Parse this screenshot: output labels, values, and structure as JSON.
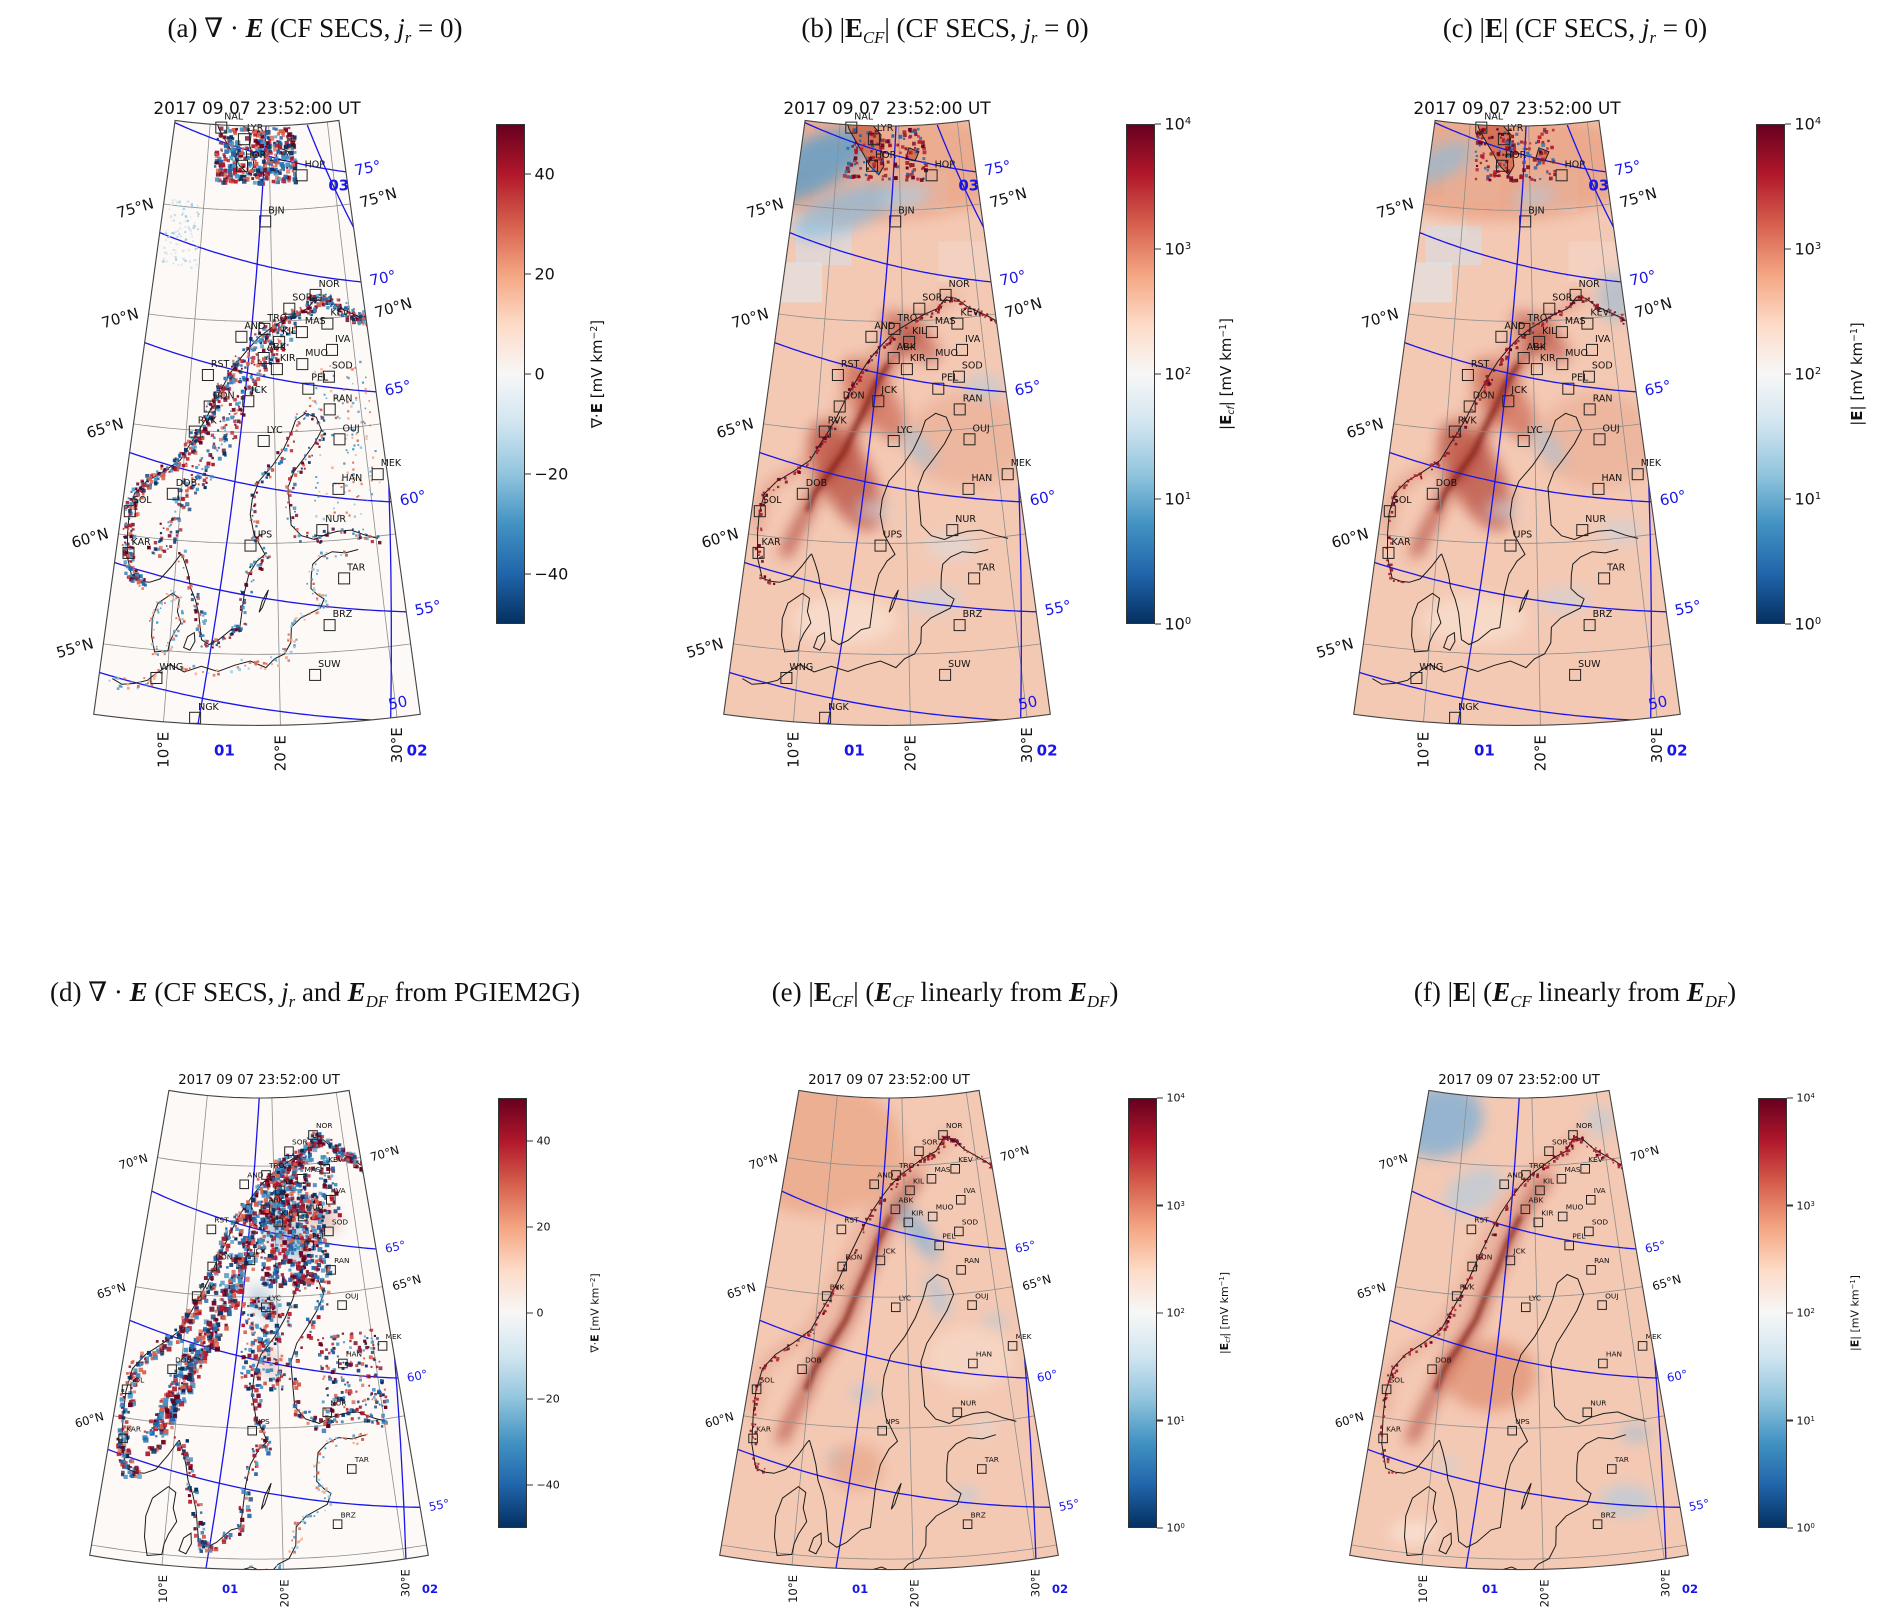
{
  "figure": {
    "timestamp": "2017 09 07 23:52:00 UT",
    "colors": {
      "magnetic_blue": "#1a15e8",
      "graticule": "#8d8d8d",
      "coast": "#1a1a1a",
      "station": "#222222",
      "divergence_background": "#fcf9f6",
      "magnitude_background": "#f4c9b4"
    },
    "cmap_rdbu_r": [
      "#053061",
      "#2166ac",
      "#4393c3",
      "#92c5de",
      "#d1e5f0",
      "#f7f7f7",
      "#fddbc7",
      "#f4a582",
      "#d6604d",
      "#b2182b",
      "#67001f"
    ]
  },
  "panels": [
    {
      "id": "a",
      "row": "top",
      "style": "divergence",
      "colorbar": "div",
      "title_segments": [
        {
          "t": "(a) ∇ · "
        },
        {
          "t": "E",
          "b": 1,
          "i": 1
        },
        {
          "t": " (CF SECS, "
        },
        {
          "t": "j",
          "i": 1
        },
        {
          "t": "r",
          "i": 1,
          "sub": 1
        },
        {
          "t": " = 0)"
        }
      ]
    },
    {
      "id": "b",
      "row": "top",
      "style": "magnitude-b",
      "colorbar": "logEcf",
      "title_segments": [
        {
          "t": "(b) |"
        },
        {
          "t": "E",
          "b": 1
        },
        {
          "t": "CF",
          "i": 1,
          "sub": 1
        },
        {
          "t": "| (CF SECS, "
        },
        {
          "t": "j",
          "i": 1
        },
        {
          "t": "r",
          "i": 1,
          "sub": 1
        },
        {
          "t": " = 0)"
        }
      ]
    },
    {
      "id": "c",
      "row": "top",
      "style": "magnitude-c",
      "colorbar": "logE",
      "title_segments": [
        {
          "t": "(c) |"
        },
        {
          "t": "E",
          "b": 1
        },
        {
          "t": "| (CF SECS, "
        },
        {
          "t": "j",
          "i": 1
        },
        {
          "t": "r",
          "i": 1,
          "sub": 1
        },
        {
          "t": " = 0)"
        }
      ]
    },
    {
      "id": "d",
      "row": "bottom",
      "style": "divergence-d",
      "colorbar": "div",
      "title_segments": [
        {
          "t": "(d) ∇ · "
        },
        {
          "t": "E",
          "b": 1,
          "i": 1
        },
        {
          "t": " (CF SECS, "
        },
        {
          "t": "j",
          "i": 1
        },
        {
          "t": "r",
          "i": 1,
          "sub": 1
        },
        {
          "t": " and "
        },
        {
          "t": "E",
          "b": 1,
          "i": 1
        },
        {
          "t": "DF",
          "i": 1,
          "sub": 1
        },
        {
          "t": " from PGIEM2G)"
        }
      ]
    },
    {
      "id": "e",
      "row": "bottom",
      "style": "magnitude-e",
      "colorbar": "logEcf",
      "title_segments": [
        {
          "t": "(e) |"
        },
        {
          "t": "E",
          "b": 1
        },
        {
          "t": "CF",
          "i": 1,
          "sub": 1
        },
        {
          "t": "| ("
        },
        {
          "t": "E",
          "b": 1,
          "i": 1
        },
        {
          "t": "CF",
          "i": 1,
          "sub": 1
        },
        {
          "t": " linearly from "
        },
        {
          "t": "E",
          "b": 1,
          "i": 1
        },
        {
          "t": "DF",
          "i": 1,
          "sub": 1
        },
        {
          "t": ")"
        }
      ]
    },
    {
      "id": "f",
      "row": "bottom",
      "style": "magnitude-f",
      "colorbar": "logE",
      "title_segments": [
        {
          "t": "(f) |"
        },
        {
          "t": "E",
          "b": 1
        },
        {
          "t": "| ("
        },
        {
          "t": "E",
          "b": 1,
          "i": 1
        },
        {
          "t": "CF",
          "i": 1,
          "sub": 1
        },
        {
          "t": " linearly from "
        },
        {
          "t": "E",
          "b": 1,
          "i": 1
        },
        {
          "t": "DF",
          "i": 1,
          "sub": 1
        },
        {
          "t": ")"
        }
      ]
    }
  ],
  "colorbars": {
    "div": {
      "type": "diverging",
      "units": "mV km−2",
      "range": [
        -50,
        50
      ],
      "ticks": [
        {
          "t": "40",
          "pos": 0.1
        },
        {
          "t": "20",
          "pos": 0.3
        },
        {
          "t": "0",
          "pos": 0.5
        },
        {
          "t": "−20",
          "pos": 0.7
        },
        {
          "t": "−40",
          "pos": 0.9
        }
      ],
      "label_segments": [
        {
          "t": "∇·"
        },
        {
          "t": "E",
          "b": 1
        },
        {
          "t": " [mV km"
        },
        {
          "t": "−2",
          "sup": 1
        },
        {
          "t": "]"
        }
      ]
    },
    "logEcf": {
      "type": "log",
      "units": "mV km−1",
      "range": [
        1,
        10000
      ],
      "ticks": [
        {
          "t": "10",
          "exp": "4",
          "pos": 0
        },
        {
          "t": "10",
          "exp": "3",
          "pos": 0.25
        },
        {
          "t": "10",
          "exp": "2",
          "pos": 0.5
        },
        {
          "t": "10",
          "exp": "1",
          "pos": 0.75
        },
        {
          "t": "10",
          "exp": "0",
          "pos": 1
        }
      ],
      "label_segments": [
        {
          "t": "|"
        },
        {
          "t": "E",
          "b": 1
        },
        {
          "t": "cf",
          "i": 1,
          "sub": 1
        },
        {
          "t": "| [mV km"
        },
        {
          "t": "−1",
          "sup": 1
        },
        {
          "t": "]"
        }
      ]
    },
    "logE": {
      "type": "log",
      "units": "mV km−1",
      "range": [
        1,
        10000
      ],
      "ticks": [
        {
          "t": "10",
          "exp": "4",
          "pos": 0
        },
        {
          "t": "10",
          "exp": "3",
          "pos": 0.25
        },
        {
          "t": "10",
          "exp": "2",
          "pos": 0.5
        },
        {
          "t": "10",
          "exp": "1",
          "pos": 0.75
        },
        {
          "t": "10",
          "exp": "0",
          "pos": 1
        }
      ],
      "label_segments": [
        {
          "t": "|"
        },
        {
          "t": "E",
          "b": 1
        },
        {
          "t": "| [mV km"
        },
        {
          "t": "−1",
          "sup": 1
        },
        {
          "t": "]"
        }
      ]
    }
  },
  "axes_top": {
    "lat_left": [
      {
        "label": "75°N",
        "lat": 75
      },
      {
        "label": "70°N",
        "lat": 70
      },
      {
        "label": "65°N",
        "lat": 65
      },
      {
        "label": "60°N",
        "lat": 60
      },
      {
        "label": "55°N",
        "lat": 55
      }
    ],
    "lat_right": [
      {
        "label": "75°N",
        "lat": 75
      },
      {
        "label": "70°N",
        "lat": 70
      }
    ],
    "mlat": [
      {
        "label": "75°",
        "mlat": 75
      },
      {
        "label": "70°",
        "mlat": 70
      },
      {
        "label": "65°",
        "mlat": 65
      },
      {
        "label": "60°",
        "mlat": 60
      },
      {
        "label": "55°",
        "mlat": 55
      },
      {
        "label": "50",
        "mlat": 50
      }
    ],
    "mlt": [
      {
        "label": "03",
        "line": "l03"
      },
      {
        "label": "01",
        "line": "l01"
      },
      {
        "label": "02",
        "line": "l02"
      }
    ],
    "lon_bottom": [
      {
        "label": "10°E",
        "lon": 10
      },
      {
        "label": "20°E",
        "lon": 20
      },
      {
        "label": "30°E",
        "lon": 30
      }
    ]
  },
  "axes_bottom": {
    "lat_left": [
      {
        "label": "70°N",
        "lat": 70
      },
      {
        "label": "65°N",
        "lat": 65
      },
      {
        "label": "60°N",
        "lat": 60
      }
    ],
    "lat_right": [
      {
        "label": "70°N",
        "lat": 70
      },
      {
        "label": "65°N",
        "lat": 65
      }
    ],
    "mlat": [
      {
        "label": "65°",
        "mlat": 65
      },
      {
        "label": "60°",
        "mlat": 60
      },
      {
        "label": "55°",
        "mlat": 55
      }
    ],
    "mlt": [
      {
        "label": "01",
        "line": "l01"
      },
      {
        "label": "02",
        "line": "l02"
      }
    ],
    "lon_bottom": [
      {
        "label": "10°E",
        "lon": 10
      },
      {
        "label": "20°E",
        "lon": 20
      },
      {
        "label": "30°E",
        "lon": 30
      }
    ]
  },
  "stations": [
    {
      "code": "NAL",
      "lat": 78.92,
      "lon": 11.95
    },
    {
      "code": "LYR",
      "lat": 78.2,
      "lon": 15.82
    },
    {
      "code": "HOR",
      "lat": 77.0,
      "lon": 15.6
    },
    {
      "code": "HOP",
      "lat": 76.51,
      "lon": 25.01
    },
    {
      "code": "BJN",
      "lat": 74.5,
      "lon": 19.2
    },
    {
      "code": "NOR",
      "lat": 71.09,
      "lon": 25.79
    },
    {
      "code": "SOR",
      "lat": 70.54,
      "lon": 22.22
    },
    {
      "code": "KEV",
      "lat": 69.76,
      "lon": 27.01
    },
    {
      "code": "TRO",
      "lat": 69.66,
      "lon": 18.94
    },
    {
      "code": "MAS",
      "lat": 69.46,
      "lon": 23.7
    },
    {
      "code": "AND",
      "lat": 69.3,
      "lon": 16.03
    },
    {
      "code": "KIL",
      "lat": 69.06,
      "lon": 20.77
    },
    {
      "code": "IVA",
      "lat": 68.56,
      "lon": 27.29
    },
    {
      "code": "ABK",
      "lat": 68.35,
      "lon": 18.82
    },
    {
      "code": "MUO",
      "lat": 68.02,
      "lon": 23.53
    },
    {
      "code": "KIR",
      "lat": 67.84,
      "lon": 20.42
    },
    {
      "code": "SOD",
      "lat": 67.37,
      "lon": 26.63
    },
    {
      "code": "RST",
      "lat": 67.52,
      "lon": 12.09
    },
    {
      "code": "PEL",
      "lat": 66.9,
      "lon": 24.08
    },
    {
      "code": "JCK",
      "lat": 66.4,
      "lon": 16.98
    },
    {
      "code": "DON",
      "lat": 66.11,
      "lon": 12.5
    },
    {
      "code": "RAN",
      "lat": 65.9,
      "lon": 26.41
    },
    {
      "code": "RVK",
      "lat": 64.94,
      "lon": 10.98
    },
    {
      "code": "LYC",
      "lat": 64.61,
      "lon": 18.75
    },
    {
      "code": "OUJ",
      "lat": 64.52,
      "lon": 27.23
    },
    {
      "code": "MEK",
      "lat": 62.77,
      "lon": 30.97
    },
    {
      "code": "HAN",
      "lat": 62.3,
      "lon": 26.65
    },
    {
      "code": "DOB",
      "lat": 62.07,
      "lon": 9.11
    },
    {
      "code": "SOL",
      "lat": 61.08,
      "lon": 4.84
    },
    {
      "code": "NUR",
      "lat": 60.5,
      "lon": 24.65
    },
    {
      "code": "UPS",
      "lat": 59.9,
      "lon": 17.35
    },
    {
      "code": "KAR",
      "lat": 59.21,
      "lon": 5.24
    },
    {
      "code": "TAR",
      "lat": 58.26,
      "lon": 26.46
    },
    {
      "code": "BRZ",
      "lat": 56.21,
      "lon": 24.76
    },
    {
      "code": "WNG",
      "lat": 53.74,
      "lon": 9.07
    },
    {
      "code": "SUW",
      "lat": 54.01,
      "lon": 23.18
    },
    {
      "code": "NGK",
      "lat": 52.07,
      "lon": 12.68
    }
  ],
  "chart_data": [
    {
      "panel": "a",
      "type": "heatmap",
      "title": "(a) ∇·E (CF SECS, jr = 0)",
      "map_title": "2017 09 07 23:52:00 UT",
      "variable": "divergence of electric field",
      "units": "mV km−2",
      "scale": "linear",
      "value_range": [
        -50,
        50
      ],
      "colorbar_ticks": [
        40,
        20,
        0,
        -20,
        -40
      ],
      "colormap": "RdBu_r",
      "region": "Fennoscandia + Svalbard, ~52–79°N, 4–32°E",
      "geo_grid_lat": [
        55,
        60,
        65,
        70,
        75
      ],
      "geo_grid_lon": [
        10,
        20,
        30
      ],
      "magnetic_lat": [
        50,
        55,
        60,
        65,
        70,
        75
      ],
      "mlt_meridians": [
        "01",
        "02",
        "03"
      ],
      "pattern": "small-scale alternating red/blue banding along Norwegian coast, Scandes and Svalbard; near zero (white) over sea"
    },
    {
      "panel": "b",
      "type": "heatmap",
      "title": "(b) |E_CF| (CF SECS, jr = 0)",
      "map_title": "2017 09 07 23:52:00 UT",
      "variable": "curl-free electric field magnitude",
      "units": "mV km−1",
      "scale": "log",
      "value_range": [
        1,
        10000
      ],
      "colorbar_ticks": [
        "10^0",
        "10^1",
        "10^2",
        "10^3",
        "10^4"
      ],
      "colormap": "RdBu_r",
      "region": "Fennoscandia + Svalbard",
      "pattern": "broad red (~10^2–10^3) over land, dark red ridge along Scandes, blue patch (~10^1) northwest of Svalbard"
    },
    {
      "panel": "c",
      "type": "heatmap",
      "title": "(c) |E| (CF SECS, jr = 0)",
      "map_title": "2017 09 07 23:52:00 UT",
      "variable": "total electric field magnitude",
      "units": "mV km−1",
      "scale": "log",
      "value_range": [
        1,
        10000
      ],
      "colorbar_ticks": [
        "10^0",
        "10^1",
        "10^2",
        "10^3",
        "10^4"
      ],
      "colormap": "RdBu_r",
      "region": "Fennoscandia + Svalbard",
      "pattern": "similar to (b), mostly red field with dark red ridge along Scandes, fewer blue regions"
    },
    {
      "panel": "d",
      "type": "heatmap",
      "title": "(d) ∇·E (CF SECS, jr and E_DF from PGIEM2G)",
      "map_title": "2017 09 07 23:52:00 UT",
      "variable": "divergence of electric field",
      "units": "mV km−2",
      "scale": "linear",
      "value_range": [
        -50,
        50
      ],
      "colorbar_ticks": [
        40,
        20,
        0,
        -20,
        -40
      ],
      "colormap": "RdBu_r",
      "region": "Fennoscandia, ~55–72°N",
      "pattern": "strong speckled red/blue structure over Scandes and northern Finland, large dark blue patches inland"
    },
    {
      "panel": "e",
      "type": "heatmap",
      "title": "(e) |E_CF| (E_CF linearly from E_DF)",
      "map_title": "2017 09 07 23:52:00 UT",
      "variable": "curl-free electric field magnitude",
      "units": "mV km−1",
      "scale": "log",
      "value_range": [
        1,
        10000
      ],
      "colorbar_ticks": [
        "10^0",
        "10^1",
        "10^2",
        "10^3",
        "10^4"
      ],
      "colormap": "RdBu_r",
      "region": "Fennoscandia",
      "pattern": "smooth salmon field with dark red coastal ridge and blue filament through northern Sweden/Finland"
    },
    {
      "panel": "f",
      "type": "heatmap",
      "title": "(f) |E| (E_CF linearly from E_DF)",
      "map_title": "2017 09 07 23:52:00 UT",
      "variable": "total electric field magnitude",
      "units": "mV km−1",
      "scale": "log",
      "value_range": [
        1,
        10000
      ],
      "colorbar_ticks": [
        "10^0",
        "10^1",
        "10^2",
        "10^3",
        "10^4"
      ],
      "colormap": "RdBu_r",
      "region": "Fennoscandia",
      "pattern": "red over Scandinavia with strong ridge, blue regions northwest sea and southeast Baltic"
    }
  ]
}
